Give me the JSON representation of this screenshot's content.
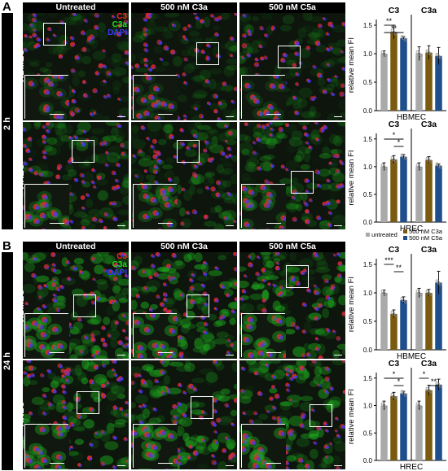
{
  "panels": [
    {
      "letter": "A",
      "time": "2 h",
      "columns": [
        "Untreated",
        "500 nM C3a",
        "500 nM C5a"
      ],
      "rows": [
        "HBMEC",
        "HREC"
      ],
      "channels": [
        {
          "label": "C3",
          "color": "#ff2020"
        },
        {
          "label": "C3a",
          "color": "#20e020"
        },
        {
          "label": "DAPI",
          "color": "#3a3aff"
        }
      ]
    },
    {
      "letter": "B",
      "time": "24 h",
      "columns": [
        "Untreated",
        "500 nM C3a",
        "500 nM C5a"
      ],
      "rows": [
        "HBMEC",
        "HREC"
      ],
      "channels": [
        {
          "label": "C3",
          "color": "#ff2020"
        },
        {
          "label": "C3a",
          "color": "#20e020"
        },
        {
          "label": "DAPI",
          "color": "#3a3aff"
        }
      ]
    }
  ],
  "legend": {
    "entries": [
      {
        "label": "untreated",
        "color": "#aaaaaa"
      },
      {
        "label": "500 nM C3a",
        "color": "#7a5a10"
      },
      {
        "label": "500 nM C5a",
        "color": "#1f4e8c"
      }
    ]
  },
  "chart_data": [
    {
      "type": "bar",
      "panel": "A",
      "cell_line": "HBMEC",
      "xlabel": "HBMEC",
      "ylabel": "relative mean FI",
      "ylim": [
        0,
        1.6
      ],
      "yticks": [
        "0.0",
        "0.5",
        "1.0",
        "1.5"
      ],
      "groups": [
        "C3",
        "C3a"
      ],
      "series": [
        {
          "name": "untreated",
          "values": [
            1.0,
            1.0
          ],
          "errors": [
            0.05,
            0.12
          ]
        },
        {
          "name": "500 nM C3a",
          "values": [
            1.38,
            1.02
          ],
          "errors": [
            0.12,
            0.12
          ]
        },
        {
          "name": "500 nM C5a",
          "values": [
            1.27,
            0.96
          ],
          "errors": [
            0.03,
            0.15
          ]
        }
      ],
      "significance": [
        {
          "group": "C3",
          "from": "untreated",
          "to": "500 nM C3a",
          "label": "**"
        },
        {
          "group": "C3",
          "from": "untreated",
          "to": "500 nM C5a",
          "label": "**"
        }
      ]
    },
    {
      "type": "bar",
      "panel": "A",
      "cell_line": "HREC",
      "xlabel": "HREC",
      "ylabel": "relative mean FI",
      "ylim": [
        0,
        1.6
      ],
      "yticks": [
        "0.0",
        "0.5",
        "1.0",
        "1.5"
      ],
      "groups": [
        "C3",
        "C3a"
      ],
      "series": [
        {
          "name": "untreated",
          "values": [
            1.0,
            1.0
          ],
          "errors": [
            0.07,
            0.07
          ]
        },
        {
          "name": "500 nM C3a",
          "values": [
            1.13,
            1.12
          ],
          "errors": [
            0.07,
            0.06
          ]
        },
        {
          "name": "500 nM C5a",
          "values": [
            1.18,
            1.02
          ],
          "errors": [
            0.04,
            0.03
          ]
        }
      ],
      "significance": [
        {
          "group": "C3",
          "from": "untreated",
          "to": "500 nM C5a",
          "label": "*"
        },
        {
          "group": "C3",
          "from": "500 nM C3a",
          "to": "500 nM C5a",
          "label": "*"
        }
      ]
    },
    {
      "type": "bar",
      "panel": "B",
      "cell_line": "HBMEC",
      "xlabel": "HBMEC",
      "ylabel": "relative mean FI",
      "ylim": [
        0,
        1.6
      ],
      "yticks": [
        "0.0",
        "0.5",
        "1.0",
        "1.5"
      ],
      "groups": [
        "C3",
        "C3a"
      ],
      "series": [
        {
          "name": "untreated",
          "values": [
            1.0,
            1.0
          ],
          "errors": [
            0.05,
            0.08
          ]
        },
        {
          "name": "500 nM C3a",
          "values": [
            0.63,
            1.0
          ],
          "errors": [
            0.07,
            0.06
          ]
        },
        {
          "name": "500 nM C5a",
          "values": [
            0.87,
            1.18
          ],
          "errors": [
            0.06,
            0.2
          ]
        }
      ],
      "significance": [
        {
          "group": "C3",
          "from": "untreated",
          "to": "500 nM C3a",
          "label": "***"
        },
        {
          "group": "C3",
          "from": "500 nM C3a",
          "to": "500 nM C5a",
          "label": "**"
        }
      ]
    },
    {
      "type": "bar",
      "panel": "B",
      "cell_line": "HREC",
      "xlabel": "HREC",
      "ylabel": "relative mean FI",
      "ylim": [
        0,
        1.6
      ],
      "yticks": [
        "0.0",
        "0.5",
        "1.0",
        "1.5"
      ],
      "groups": [
        "C3",
        "C3a"
      ],
      "series": [
        {
          "name": "untreated",
          "values": [
            1.0,
            1.0
          ],
          "errors": [
            0.08,
            0.08
          ]
        },
        {
          "name": "500 nM C3a",
          "values": [
            1.17,
            1.28
          ],
          "errors": [
            0.07,
            0.09
          ]
        },
        {
          "name": "500 nM C5a",
          "values": [
            1.22,
            1.38
          ],
          "errors": [
            0.04,
            0.1
          ]
        }
      ],
      "significance": [
        {
          "group": "C3",
          "from": "untreated",
          "to": "500 nM C5a",
          "label": "*"
        },
        {
          "group": "C3",
          "from": "500 nM C3a",
          "to": "500 nM C5a",
          "label": "*"
        },
        {
          "group": "C3a",
          "from": "untreated",
          "to": "500 nM C3a",
          "label": "*"
        },
        {
          "group": "C3a",
          "from": "500 nM C3a",
          "to": "500 nM C5a",
          "label": "**"
        }
      ]
    }
  ]
}
